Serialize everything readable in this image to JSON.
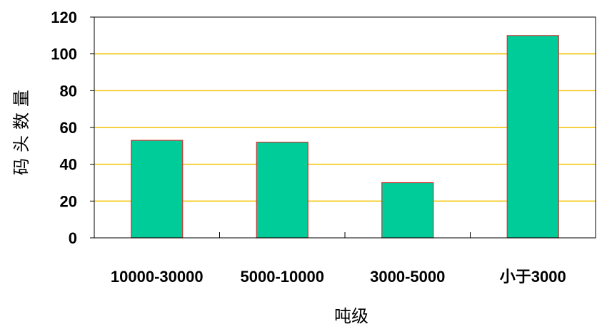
{
  "chart_data": {
    "type": "bar",
    "categories": [
      "10000-30000",
      "5000-10000",
      "3000-5000",
      "小于3000"
    ],
    "values": [
      53,
      52,
      30,
      110
    ],
    "title": "",
    "xlabel": "吨级",
    "ylabel": "码头数量",
    "ylim": [
      0,
      120
    ],
    "yticks": [
      "0",
      "20",
      "40",
      "60",
      "80",
      "100",
      "120"
    ],
    "grid": true,
    "legend": "none",
    "colors": {
      "bar_fill": "#00CC99",
      "bar_stroke": "#CC3333",
      "gridline": "#F2C200",
      "axis": "#000000"
    }
  }
}
